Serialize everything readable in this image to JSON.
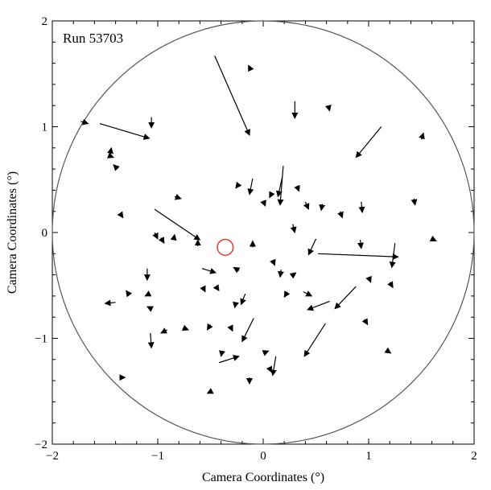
{
  "chart_data": {
    "type": "scatter",
    "title": "",
    "annotation": "Run 53703",
    "xlabel": "Camera Coordinates (°)",
    "ylabel": "Camera Coordinates (°)",
    "xlim": [
      -2,
      2
    ],
    "ylim": [
      -2,
      2
    ],
    "xticks": [
      -2,
      -1,
      0,
      1,
      2
    ],
    "yticks": [
      -2,
      -1,
      0,
      1,
      2
    ],
    "xtick_labels": [
      "−2",
      "−1",
      "0",
      "1",
      "2"
    ],
    "ytick_labels": [
      "−2",
      "−1",
      "0",
      "1",
      "2"
    ],
    "grid": false,
    "camera_circle": {
      "center": [
        0,
        0
      ],
      "radius": 2.0,
      "color": "#555555"
    },
    "source_marker": {
      "center": [
        -0.36,
        -0.14
      ],
      "radius": 0.075,
      "color": "#e03c31"
    },
    "arrow_color": "#000000",
    "arrows": [
      {
        "x1": -0.46,
        "y1": 1.67,
        "x2": -0.13,
        "y2": 0.92
      },
      {
        "x1": -1.55,
        "y1": 1.03,
        "x2": -1.08,
        "y2": 0.89
      },
      {
        "x1": -1.03,
        "y1": 0.22,
        "x2": -0.6,
        "y2": -0.07
      },
      {
        "x1": 0.52,
        "y1": -0.2,
        "x2": 1.28,
        "y2": -0.23
      },
      {
        "x1": 1.25,
        "y1": -0.1,
        "x2": 1.22,
        "y2": -0.33
      },
      {
        "x1": 1.12,
        "y1": 1.0,
        "x2": 0.88,
        "y2": 0.71
      },
      {
        "x1": 0.88,
        "y1": -0.51,
        "x2": 0.68,
        "y2": -0.72
      },
      {
        "x1": 0.59,
        "y1": -0.86,
        "x2": 0.39,
        "y2": -1.17
      },
      {
        "x1": 0.63,
        "y1": -0.65,
        "x2": 0.42,
        "y2": -0.73
      },
      {
        "x1": 0.5,
        "y1": -0.06,
        "x2": 0.43,
        "y2": -0.21
      },
      {
        "x1": -0.09,
        "y1": -0.81,
        "x2": -0.2,
        "y2": -1.03
      },
      {
        "x1": -0.42,
        "y1": -1.23,
        "x2": -0.23,
        "y2": -1.17
      },
      {
        "x1": 0.12,
        "y1": -1.17,
        "x2": 0.09,
        "y2": -1.35
      },
      {
        "x1": -1.07,
        "y1": -0.95,
        "x2": -1.06,
        "y2": -1.09
      },
      {
        "x1": 0.19,
        "y1": 0.63,
        "x2": 0.16,
        "y2": 0.26
      },
      {
        "x1": 0.3,
        "y1": 1.24,
        "x2": 0.3,
        "y2": 1.08
      },
      {
        "x1": -1.06,
        "y1": 1.09,
        "x2": -1.06,
        "y2": 0.99
      },
      {
        "x1": -0.1,
        "y1": 0.51,
        "x2": -0.13,
        "y2": 0.36
      },
      {
        "x1": 0.18,
        "y1": 0.52,
        "x2": 0.14,
        "y2": 0.34
      },
      {
        "x1": -0.58,
        "y1": -0.34,
        "x2": -0.45,
        "y2": -0.38
      },
      {
        "x1": 0.92,
        "y1": -0.07,
        "x2": 0.93,
        "y2": -0.15
      },
      {
        "x1": 0.93,
        "y1": 0.29,
        "x2": 0.94,
        "y2": 0.19
      },
      {
        "x1": 0.28,
        "y1": 0.08,
        "x2": 0.3,
        "y2": 0.0
      },
      {
        "x1": 0.38,
        "y1": -0.56,
        "x2": 0.46,
        "y2": -0.6
      },
      {
        "x1": -1.4,
        "y1": -0.66,
        "x2": -1.5,
        "y2": -0.67
      },
      {
        "x1": -0.17,
        "y1": -0.58,
        "x2": -0.21,
        "y2": -0.68
      },
      {
        "x1": -1.1,
        "y1": -0.34,
        "x2": -1.1,
        "y2": -0.45
      },
      {
        "x1": -1.38,
        "y1": 0.6,
        "x2": -1.42,
        "y2": 0.64
      },
      {
        "x1": -0.23,
        "y1": 0.46,
        "x2": -0.26,
        "y2": 0.42
      },
      {
        "x1": 0.08,
        "y1": 0.37,
        "x2": 0.06,
        "y2": 0.33
      },
      {
        "x1": 0.32,
        "y1": 0.44,
        "x2": 0.34,
        "y2": 0.39
      },
      {
        "x1": 0.0,
        "y1": 0.3,
        "x2": 0.02,
        "y2": 0.25
      },
      {
        "x1": 0.4,
        "y1": 0.29,
        "x2": 0.43,
        "y2": 0.22
      },
      {
        "x1": 0.56,
        "y1": 0.27,
        "x2": 0.55,
        "y2": 0.21
      },
      {
        "x1": 0.73,
        "y1": 0.2,
        "x2": 0.75,
        "y2": 0.14
      },
      {
        "x1": 1.0,
        "y1": -0.42,
        "x2": 1.02,
        "y2": -0.47
      },
      {
        "x1": 1.2,
        "y1": -0.47,
        "x2": 1.23,
        "y2": -0.52
      },
      {
        "x1": 0.96,
        "y1": -0.82,
        "x2": 0.99,
        "y2": -0.87
      },
      {
        "x1": 1.18,
        "y1": -1.12,
        "x2": 1.21,
        "y2": -1.14
      },
      {
        "x1": -1.73,
        "y1": 1.05,
        "x2": -1.66,
        "y2": 1.03
      },
      {
        "x1": -1.45,
        "y1": 0.75,
        "x2": -1.44,
        "y2": 0.8
      },
      {
        "x1": -1.47,
        "y1": 0.73,
        "x2": -1.42,
        "y2": 0.71
      },
      {
        "x1": -1.35,
        "y1": 0.17,
        "x2": -1.33,
        "y2": 0.14
      },
      {
        "x1": -0.84,
        "y1": 0.34,
        "x2": -0.78,
        "y2": 0.32
      },
      {
        "x1": -0.97,
        "y1": -0.05,
        "x2": -0.94,
        "y2": -0.1
      },
      {
        "x1": -1.03,
        "y1": 0.0,
        "x2": -1.0,
        "y2": -0.06
      },
      {
        "x1": -0.85,
        "y1": -0.07,
        "x2": -0.84,
        "y2": -0.02
      },
      {
        "x1": -0.62,
        "y1": -0.13,
        "x2": -0.62,
        "y2": -0.07
      },
      {
        "x1": -0.23,
        "y1": -0.36,
        "x2": -0.28,
        "y2": -0.33
      },
      {
        "x1": -0.1,
        "y1": -0.14,
        "x2": -0.1,
        "y2": -0.08
      },
      {
        "x1": 0.09,
        "y1": -0.26,
        "x2": 0.11,
        "y2": -0.31
      },
      {
        "x1": 0.17,
        "y1": -0.35,
        "x2": 0.16,
        "y2": -0.42
      },
      {
        "x1": 0.27,
        "y1": -0.41,
        "x2": 0.31,
        "y2": -0.38
      },
      {
        "x1": 0.23,
        "y1": -0.56,
        "x2": 0.2,
        "y2": -0.61
      },
      {
        "x1": -1.27,
        "y1": -0.59,
        "x2": -1.3,
        "y2": -0.55
      },
      {
        "x1": -1.08,
        "y1": -0.58,
        "x2": -1.12,
        "y2": -0.6
      },
      {
        "x1": -1.06,
        "y1": -0.72,
        "x2": -1.1,
        "y2": -0.7
      },
      {
        "x1": -0.91,
        "y1": -0.92,
        "x2": -0.97,
        "y2": -0.95
      },
      {
        "x1": -0.76,
        "y1": -0.9,
        "x2": -0.71,
        "y2": -0.92
      },
      {
        "x1": -0.5,
        "y1": -0.87,
        "x2": -0.53,
        "y2": -0.92
      },
      {
        "x1": -0.39,
        "y1": -1.12,
        "x2": -0.4,
        "y2": -1.17
      },
      {
        "x1": -0.13,
        "y1": -1.37,
        "x2": -0.13,
        "y2": -1.43
      },
      {
        "x1": -1.35,
        "y1": -1.37,
        "x2": -1.31,
        "y2": -1.37
      },
      {
        "x1": -0.49,
        "y1": -1.5,
        "x2": -0.53,
        "y2": -1.52
      },
      {
        "x1": 0.0,
        "y1": -1.14,
        "x2": 0.05,
        "y2": -1.12
      },
      {
        "x1": -0.12,
        "y1": 1.54,
        "x2": -0.14,
        "y2": 1.58
      },
      {
        "x1": 0.62,
        "y1": 1.19,
        "x2": 0.63,
        "y2": 1.15
      },
      {
        "x1": 1.5,
        "y1": 0.88,
        "x2": 1.52,
        "y2": 0.94
      },
      {
        "x1": 1.43,
        "y1": 0.32,
        "x2": 1.44,
        "y2": 0.26
      },
      {
        "x1": 1.6,
        "y1": -0.06,
        "x2": 1.64,
        "y2": -0.08
      },
      {
        "x1": -0.57,
        "y1": -0.52,
        "x2": -0.55,
        "y2": -0.56
      },
      {
        "x1": -0.44,
        "y1": -0.52,
        "x2": -0.42,
        "y2": -0.55
      },
      {
        "x1": -0.26,
        "y1": -0.66,
        "x2": -0.27,
        "y2": -0.71
      },
      {
        "x1": -0.31,
        "y1": -0.89,
        "x2": -0.29,
        "y2": -0.93
      },
      {
        "x1": 0.06,
        "y1": -1.28,
        "x2": 0.08,
        "y2": -1.32
      }
    ]
  }
}
